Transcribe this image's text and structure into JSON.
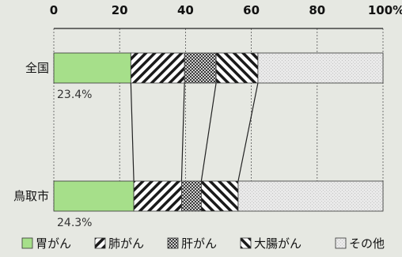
{
  "chart_data": {
    "type": "bar",
    "orientation": "horizontal",
    "stacked": true,
    "percent": true,
    "categories": [
      "全国",
      "鳥取市"
    ],
    "series": [
      {
        "name": "胃がん",
        "values": [
          23.4,
          24.3
        ],
        "color": "#a6df8a",
        "pattern": "solid"
      },
      {
        "name": "肺がん",
        "values": [
          16.3,
          14.5
        ],
        "color": "#222222",
        "pattern": "diagonal-right"
      },
      {
        "name": "肝がん",
        "values": [
          9.6,
          6.0
        ],
        "color": "#555555",
        "pattern": "crosshatch"
      },
      {
        "name": "大腸がん",
        "values": [
          12.7,
          11.2
        ],
        "color": "#222222",
        "pattern": "diagonal-left"
      },
      {
        "name": "その他",
        "values": [
          38.0,
          44.0
        ],
        "color": "#d8d8d8",
        "pattern": "light"
      }
    ],
    "xticks": [
      "0",
      "20",
      "40",
      "60",
      "80",
      "100%"
    ],
    "xlim": [
      0,
      100
    ],
    "grid": true,
    "data_labels": [
      "23.4%",
      "24.3%"
    ],
    "legend_position": "bottom"
  }
}
